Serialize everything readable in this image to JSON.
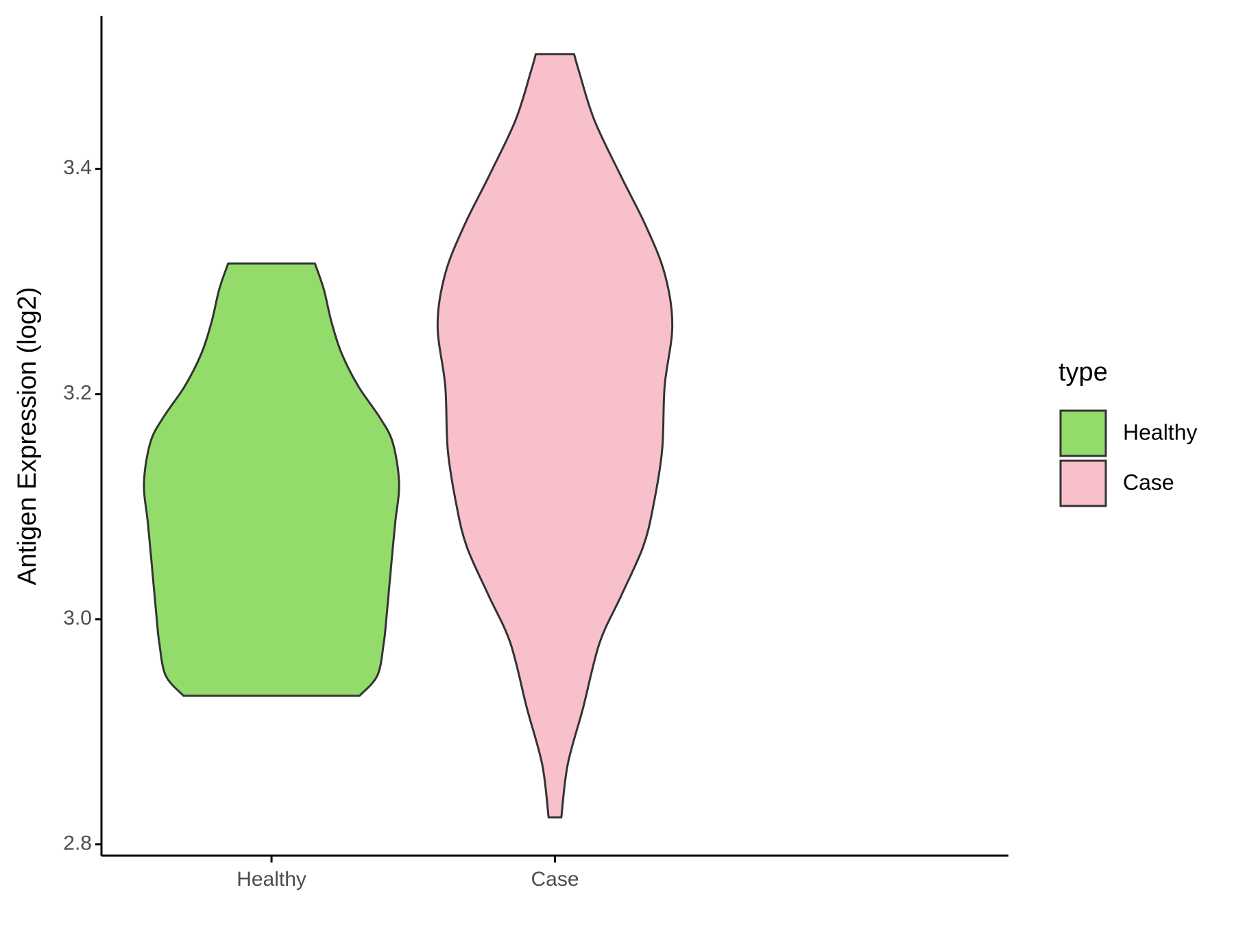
{
  "chart_data": {
    "type": "violin",
    "ylabel": "Antigen Expression (log2)",
    "categories": [
      "Healthy",
      "Case"
    ],
    "ylim": [
      2.79,
      3.536
    ],
    "yticks": [
      2.8,
      {
        "value": 3,
        "label": "3.0"
      },
      3.2,
      3.4
    ],
    "legend_title": "type",
    "legend_position": "right",
    "outline_color": "#333333",
    "series": [
      {
        "name": "Healthy",
        "color": "#93dc6b",
        "y": [
          2.932,
          2.95,
          2.979,
          3.0,
          3.05,
          3.086,
          3.121,
          3.157,
          3.179,
          3.207,
          3.236,
          3.264,
          3.293,
          3.316
        ],
        "width": [
          0.69,
          0.83,
          0.88,
          0.9,
          0.94,
          0.97,
          1.0,
          0.95,
          0.85,
          0.68,
          0.55,
          0.47,
          0.41,
          0.34
        ]
      },
      {
        "name": "Case",
        "color": "#f7c0cb",
        "y": [
          2.824,
          2.871,
          2.921,
          2.979,
          3.021,
          3.064,
          3.1,
          3.15,
          3.207,
          3.261,
          3.307,
          3.35,
          3.393,
          3.443,
          3.486,
          3.502
        ],
        "width": [
          0.05,
          0.1,
          0.22,
          0.35,
          0.52,
          0.69,
          0.77,
          0.84,
          0.86,
          0.92,
          0.86,
          0.71,
          0.52,
          0.31,
          0.19,
          0.15
        ]
      }
    ]
  }
}
